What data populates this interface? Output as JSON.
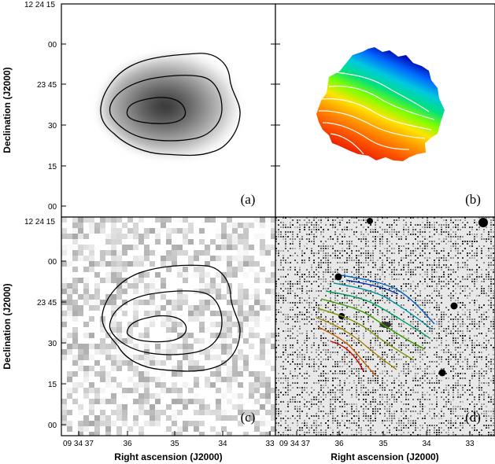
{
  "figure": {
    "ylabel": "Declination (J2000)",
    "xlabel": "Right ascension (J2000)",
    "dec_ticks": [
      "12 24 15",
      "00",
      "23 45",
      "30",
      "15",
      "00"
    ],
    "ra_ticks": [
      "09 34 37",
      "36",
      "35",
      "34",
      "33"
    ],
    "panels": {
      "a": {
        "label": "(a)",
        "description": "grayscale intensity map with black contours"
      },
      "b": {
        "label": "(b)",
        "description": "rainbow velocity field with white isovelocity contours"
      },
      "c": {
        "label": "(c)",
        "description": "noisy grayscale map with black contours"
      },
      "d": {
        "label": "(d)",
        "description": "optical image with coloured isovelocity contours"
      }
    },
    "colors": {
      "velocity_ramp": [
        "#e00000",
        "#ff5a00",
        "#ffa000",
        "#ffe400",
        "#7bff00",
        "#00e080",
        "#00c8e0",
        "#0068ff",
        "#0000b0",
        "#000030"
      ],
      "velocity_contours_d": [
        "#cc0000",
        "#c06000",
        "#a08000",
        "#7a9000",
        "#3a9a00",
        "#009a60",
        "#0090a0",
        "#0060c0",
        "#0030b0"
      ]
    }
  }
}
